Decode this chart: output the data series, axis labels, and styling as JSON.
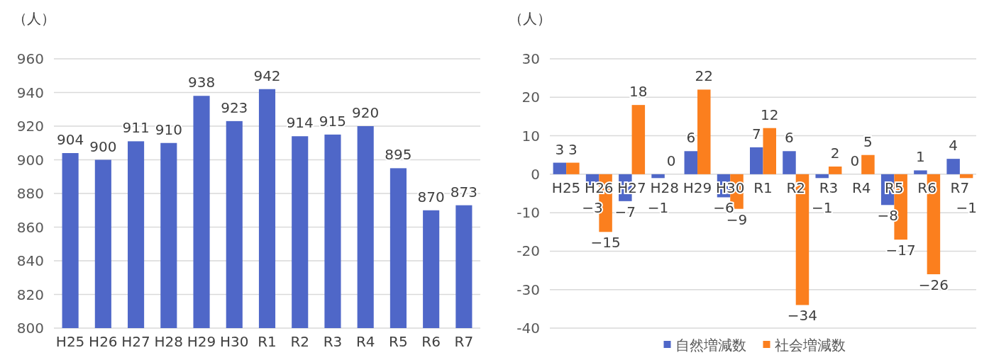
{
  "chart_data": [
    {
      "type": "bar",
      "ylabel": "（人）",
      "categories": [
        "H25",
        "H26",
        "H27",
        "H28",
        "H29",
        "H30",
        "R1",
        "R2",
        "R3",
        "R4",
        "R5",
        "R6",
        "R7"
      ],
      "series": [
        {
          "color": "#4f67c8",
          "values": [
            904,
            900,
            911,
            910,
            938,
            923,
            942,
            914,
            915,
            920,
            895,
            870,
            873
          ]
        }
      ],
      "ylim": [
        800,
        960
      ],
      "yticks": [
        800,
        820,
        840,
        860,
        880,
        900,
        920,
        940,
        960
      ],
      "grid": "y",
      "data_labels": true,
      "legend": false
    },
    {
      "type": "bar",
      "ylabel": "（人）",
      "categories": [
        "H25",
        "H26",
        "H27",
        "H28",
        "H29",
        "H30",
        "R1",
        "R2",
        "R3",
        "R4",
        "R5",
        "R6",
        "R7"
      ],
      "series": [
        {
          "name": "自然増減数",
          "color": "#4f67c8",
          "values": [
            3,
            -3,
            -7,
            -1,
            6,
            -6,
            7,
            6,
            -1,
            0,
            -8,
            1,
            4
          ]
        },
        {
          "name": "社会増減数",
          "color": "#fb7f1e",
          "values": [
            3,
            -15,
            18,
            0,
            22,
            -9,
            12,
            -34,
            2,
            5,
            -17,
            -26,
            -1
          ]
        }
      ],
      "ylim": [
        -40,
        30
      ],
      "yticks": [
        -40,
        -30,
        -20,
        -10,
        0,
        10,
        20,
        30
      ],
      "grid": "y",
      "data_labels": true,
      "legend": "bottom"
    }
  ]
}
